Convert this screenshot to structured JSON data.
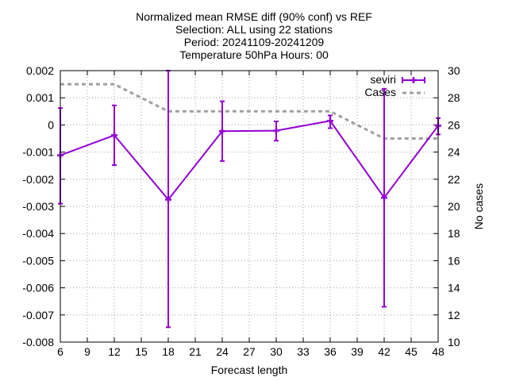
{
  "chart_data": {
    "type": "line",
    "title_lines": [
      "Normalized mean RMSE diff (90% conf) vs REF",
      "Selection: ALL using    22 stations",
      "Period: 20241109-20241209",
      "Temperature 50hPa   Hours: 00"
    ],
    "xlabel": "Forecast length",
    "ylabel": "",
    "y2label": "No cases",
    "xlim": [
      6,
      48
    ],
    "xticks": [
      6,
      9,
      12,
      15,
      18,
      21,
      24,
      27,
      30,
      33,
      36,
      39,
      42,
      45,
      48
    ],
    "ylim": [
      -0.008,
      0.002
    ],
    "yticks": [
      0.002,
      0.001,
      0,
      -0.001,
      -0.002,
      -0.003,
      -0.004,
      -0.005,
      -0.006,
      -0.007,
      -0.008
    ],
    "ytick_labels": [
      "0.002",
      "0.001",
      "0",
      "-0.001",
      "-0.002",
      "-0.003",
      "-0.004",
      "-0.005",
      "-0.006",
      "-0.007",
      "-0.008"
    ],
    "y2lim": [
      10,
      30
    ],
    "y2ticks": [
      30,
      28,
      26,
      24,
      22,
      20,
      18,
      16,
      14,
      12,
      10
    ],
    "legend_position": "top-right",
    "series": [
      {
        "name": "seviri",
        "color": "#9400d3",
        "axis": "y1",
        "x": [
          6,
          12,
          18,
          24,
          30,
          36,
          42,
          48
        ],
        "values": [
          -0.00112,
          -0.00038,
          -0.00275,
          -0.00023,
          -0.00021,
          0.00015,
          -0.00268,
          -3e-05
        ],
        "err_low": [
          -0.0029,
          -0.00148,
          -0.00745,
          -0.00133,
          -0.00058,
          -0.00012,
          -0.0067,
          -0.00035
        ],
        "err_high": [
          0.00062,
          0.00072,
          0.002,
          0.00087,
          0.00013,
          0.00035,
          0.00133,
          0.00025
        ]
      },
      {
        "name": "Cases",
        "color": "#a0a0a0",
        "axis": "y2",
        "style": "dashed",
        "x": [
          6,
          12,
          18,
          24,
          30,
          36,
          42,
          48
        ],
        "values": [
          29,
          29,
          27,
          27,
          27,
          27,
          25,
          25
        ]
      }
    ]
  }
}
